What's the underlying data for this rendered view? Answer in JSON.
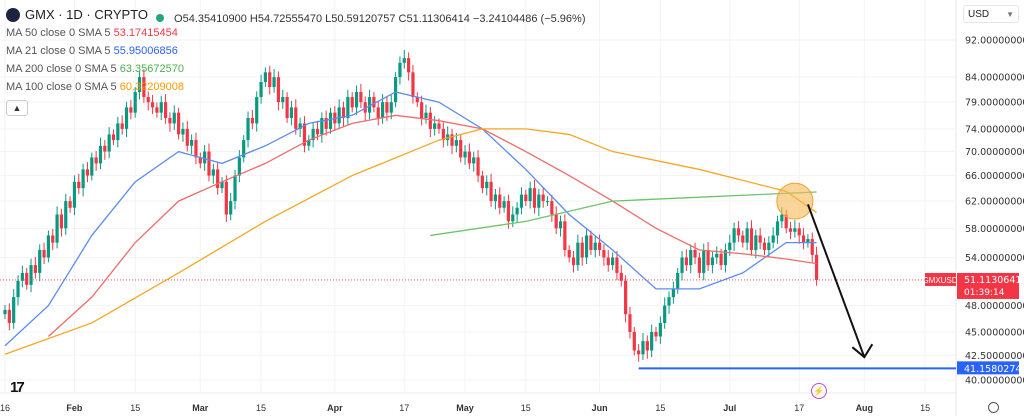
{
  "header": {
    "symbol": "GMX · 1D · CRYPTO",
    "ohlc": "O54.35410900  H54.72555470  L50.59120757  C51.11306414  −3.24104486 (−5.96%)",
    "currency": "USD",
    "collapse_icon": "chevron-up-icon"
  },
  "indicators": [
    {
      "label": "MA 50 close 0 SMA 5",
      "value": "53.17415454",
      "color": "#f23645"
    },
    {
      "label": "MA 21 close 0 SMA 5",
      "value": "55.95006856",
      "color": "#2962ff"
    },
    {
      "label": "MA 200 close 0 SMA 5",
      "value": "63.35672570",
      "color": "#4caf50"
    },
    {
      "label": "MA 100 close 0 SMA 5",
      "value": "60.32209008",
      "color": "#ff9800"
    }
  ],
  "price_label": {
    "symbol": "GMXUSD",
    "value": "51.11306414",
    "countdown": "01:39:14",
    "color": "#f23645"
  },
  "support_label": {
    "value": "41.15802745",
    "price": 41.15802745,
    "color": "#2962ff"
  },
  "chart_data": {
    "type": "candlestick",
    "y_scale": "log",
    "ylim": [
      40,
      92
    ],
    "y_ticks": [
      "92.00000000",
      "84.00000000",
      "79.00000000",
      "74.00000000",
      "70.00000000",
      "66.00000000",
      "62.00000000",
      "58.00000000",
      "54.00000000",
      "48.00000000",
      "45.00000000",
      "42.50000000",
      "40.00000000"
    ],
    "x_ticks": [
      {
        "label": "16",
        "day": 0
      },
      {
        "label": "Feb",
        "day": 16
      },
      {
        "label": "15",
        "day": 30
      },
      {
        "label": "Mar",
        "day": 45
      },
      {
        "label": "15",
        "day": 59
      },
      {
        "label": "Apr",
        "day": 76
      },
      {
        "label": "17",
        "day": 92
      },
      {
        "label": "May",
        "day": 106
      },
      {
        "label": "15",
        "day": 120
      },
      {
        "label": "Jun",
        "day": 137
      },
      {
        "label": "15",
        "day": 151
      },
      {
        "label": "Jul",
        "day": 167
      },
      {
        "label": "17",
        "day": 183
      },
      {
        "label": "Aug",
        "day": 198
      },
      {
        "label": "15",
        "day": 212
      }
    ],
    "up_color": "#089981",
    "down_color": "#f23645",
    "first_open": 47,
    "closes": [
      47.5,
      46,
      49,
      51,
      52,
      50.5,
      53,
      52,
      55,
      54,
      57,
      56,
      60,
      58,
      62,
      61,
      65,
      64,
      67,
      66,
      69,
      68,
      71,
      70,
      73,
      72,
      75,
      74,
      78,
      77,
      81,
      84,
      80,
      79,
      78,
      77,
      79,
      76,
      75,
      77,
      73,
      74,
      71,
      72,
      69,
      68,
      70,
      66,
      67,
      64,
      65,
      60,
      62,
      66,
      69,
      72,
      76,
      75,
      80,
      83,
      85,
      82,
      84,
      79,
      80,
      76,
      78,
      74,
      75,
      71,
      72,
      74,
      73,
      76,
      74,
      77,
      75,
      78,
      76,
      80,
      78,
      81,
      79,
      77,
      80,
      78,
      76,
      79,
      77,
      79,
      84,
      87,
      88,
      85,
      80,
      79,
      76,
      77,
      74,
      75,
      74,
      72,
      73,
      71,
      72,
      69,
      70,
      68,
      69,
      66,
      64,
      65,
      62,
      63,
      61,
      62,
      59,
      60,
      61,
      63,
      62,
      64,
      61,
      63,
      62,
      62,
      60,
      58,
      59,
      55,
      54,
      53,
      56,
      54,
      57,
      55,
      56,
      55,
      54,
      53,
      54,
      52,
      51,
      47,
      45,
      43,
      42.6,
      44,
      43,
      45,
      44.5,
      46,
      48,
      49,
      50,
      52,
      54,
      53,
      55,
      54,
      52,
      55,
      53,
      54,
      54.5,
      53,
      55,
      56,
      58,
      57,
      56,
      58,
      55,
      57,
      56,
      55,
      56,
      57,
      59,
      60,
      58,
      57.5,
      58,
      57,
      56,
      56.5,
      54.35,
      51.11
    ],
    "moving_averages": [
      {
        "name": "MA 21",
        "color": "#5b8def",
        "points": [
          [
            0,
            43.5
          ],
          [
            10,
            48
          ],
          [
            20,
            57
          ],
          [
            30,
            65
          ],
          [
            40,
            70
          ],
          [
            50,
            68
          ],
          [
            60,
            71
          ],
          [
            70,
            75
          ],
          [
            80,
            76.5
          ],
          [
            90,
            81
          ],
          [
            100,
            79
          ],
          [
            110,
            74
          ],
          [
            120,
            67
          ],
          [
            130,
            60
          ],
          [
            140,
            55
          ],
          [
            150,
            50
          ],
          [
            160,
            50
          ],
          [
            170,
            52
          ],
          [
            180,
            56
          ],
          [
            187,
            56
          ]
        ]
      },
      {
        "name": "MA 50",
        "color": "#f06b6b",
        "points": [
          [
            10,
            44.5
          ],
          [
            20,
            49
          ],
          [
            30,
            56
          ],
          [
            40,
            62
          ],
          [
            50,
            65
          ],
          [
            60,
            68
          ],
          [
            70,
            72
          ],
          [
            80,
            75
          ],
          [
            90,
            76.5
          ],
          [
            100,
            75.5
          ],
          [
            110,
            74
          ],
          [
            120,
            70
          ],
          [
            130,
            66
          ],
          [
            140,
            62
          ],
          [
            150,
            58
          ],
          [
            160,
            55
          ],
          [
            170,
            54.5
          ],
          [
            180,
            53.8
          ],
          [
            187,
            53.2
          ]
        ]
      },
      {
        "name": "MA 100",
        "color": "#f5a623",
        "points": [
          [
            0,
            42.6
          ],
          [
            20,
            46
          ],
          [
            40,
            52
          ],
          [
            60,
            59
          ],
          [
            80,
            66
          ],
          [
            100,
            72
          ],
          [
            110,
            74
          ],
          [
            120,
            74
          ],
          [
            130,
            73
          ],
          [
            140,
            70
          ],
          [
            160,
            67
          ],
          [
            180,
            63.5
          ],
          [
            187,
            60.3
          ]
        ]
      },
      {
        "name": "MA 200",
        "color": "#6cc46c",
        "points": [
          [
            98,
            57
          ],
          [
            120,
            59
          ],
          [
            140,
            62
          ],
          [
            160,
            62.6
          ],
          [
            187,
            63.4
          ]
        ]
      }
    ],
    "annotations": {
      "highlight_circle": {
        "day": 182,
        "price": 62,
        "color": "#f7b955"
      },
      "arrow": {
        "from": [
          185,
          61.5
        ],
        "to": [
          198,
          42.3
        ],
        "color": "#111111"
      },
      "support_line": {
        "from_day": 146,
        "price": 41.158
      }
    }
  }
}
